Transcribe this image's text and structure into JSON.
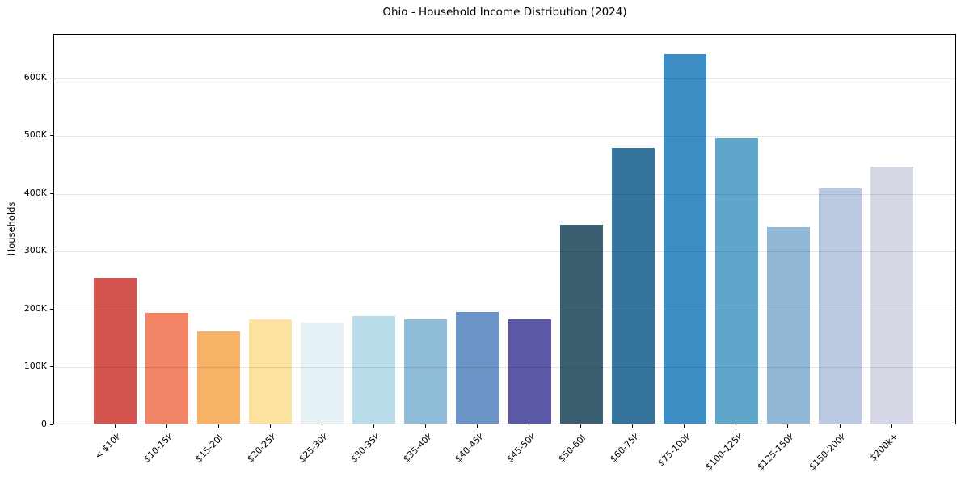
{
  "title": "Ohio - Household Income Distribution (2024)",
  "chart_data": {
    "type": "bar",
    "title": "Ohio - Household Income Distribution (2024)",
    "xlabel": "",
    "ylabel": "Households",
    "categories": [
      "< $10k",
      "$10-15k",
      "$15-20k",
      "$20-25k",
      "$25-30k",
      "$30-35k",
      "$35-40k",
      "$40-45k",
      "$45-50k",
      "$50-60k",
      "$60-75k",
      "$75-100k",
      "$100-125k",
      "$125-150k",
      "$150-200k",
      "$200k+"
    ],
    "values": [
      252000,
      192000,
      160000,
      180000,
      175000,
      186000,
      181000,
      193000,
      181000,
      344000,
      476000,
      639000,
      493000,
      340000,
      407000,
      444000
    ],
    "bar_colors": [
      "#d4534e",
      "#f08465",
      "#f8b267",
      "#fce1a0",
      "#e6f1f6",
      "#b9dcea",
      "#8fbcd9",
      "#6b93c5",
      "#5a58a7",
      "#3a5f70",
      "#35749c",
      "#3d8ec4",
      "#5fa6cb",
      "#92b8d8",
      "#bac9e1",
      "#d6d7e6"
    ],
    "ylim": [
      0,
      675000
    ],
    "yticks": [
      0,
      100000,
      200000,
      300000,
      400000,
      500000,
      600000
    ],
    "ytick_labels": [
      "0",
      "100K",
      "200K",
      "300K",
      "400K",
      "500K",
      "600K"
    ],
    "grid": "horizontal",
    "gridline_color": "#e6e6e6",
    "legend": "none",
    "background": "#ffffff",
    "spine_color": "#000000"
  }
}
